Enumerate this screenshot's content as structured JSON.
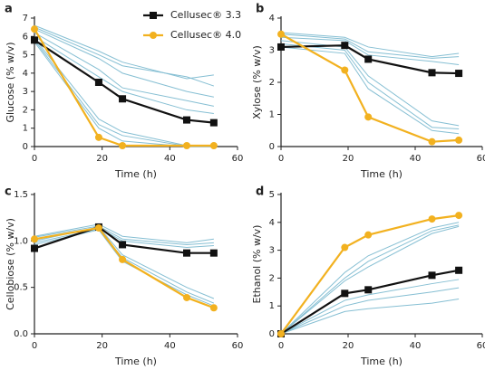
{
  "chart_data": [
    {
      "type": "line",
      "label": "a",
      "xlabel": "Time (h)",
      "ylabel": "Glucose (% w/v)",
      "x": [
        0,
        19,
        26,
        45,
        53
      ],
      "xlim": [
        0,
        60
      ],
      "xticks": [
        0,
        20,
        40,
        60
      ],
      "ylim": [
        0,
        7
      ],
      "yticks": [
        0,
        1,
        2,
        3,
        4,
        5,
        6,
        7
      ],
      "series": [
        {
          "color": "#86bfd3",
          "values": [
            6.6,
            5.2,
            4.6,
            3.7,
            3.9
          ]
        },
        {
          "color": "#86bfd3",
          "values": [
            6.5,
            5.0,
            4.4,
            3.8,
            3.3
          ]
        },
        {
          "color": "#86bfd3",
          "values": [
            6.4,
            4.8,
            4.0,
            3.0,
            2.7
          ]
        },
        {
          "color": "#86bfd3",
          "values": [
            6.2,
            4.2,
            3.2,
            2.5,
            2.2
          ]
        },
        {
          "color": "#86bfd3",
          "values": [
            6.0,
            3.8,
            3.0,
            2.0,
            1.8
          ]
        },
        {
          "color": "#86bfd3",
          "values": [
            5.9,
            1.5,
            0.8,
            0.05,
            0.05
          ]
        },
        {
          "color": "#86bfd3",
          "values": [
            5.8,
            1.2,
            0.6,
            0.02,
            0.02
          ]
        },
        {
          "color": "#86bfd3",
          "values": [
            5.7,
            1.0,
            0.3,
            0,
            0
          ]
        },
        {
          "name": "Cellusec® 3.3",
          "color": "#111111",
          "marker": "square",
          "values": [
            5.8,
            3.5,
            2.6,
            1.45,
            1.3
          ]
        },
        {
          "name": "Cellusec® 4.0",
          "color": "#f2b11f",
          "marker": "circle",
          "values": [
            6.4,
            0.5,
            0.05,
            0.05,
            0.05
          ]
        }
      ]
    },
    {
      "type": "line",
      "label": "b",
      "xlabel": "Time (h)",
      "ylabel": "Xylose (% w/v)",
      "x": [
        0,
        19,
        26,
        45,
        53
      ],
      "xlim": [
        0,
        60
      ],
      "xticks": [
        0,
        20,
        40,
        60
      ],
      "ylim": [
        0,
        4
      ],
      "yticks": [
        0,
        1,
        2,
        3,
        4
      ],
      "series": [
        {
          "color": "#86bfd3",
          "values": [
            3.55,
            3.4,
            3.1,
            2.8,
            2.9
          ]
        },
        {
          "color": "#86bfd3",
          "values": [
            3.5,
            3.35,
            2.95,
            2.75,
            2.8
          ]
        },
        {
          "color": "#86bfd3",
          "values": [
            3.4,
            3.3,
            2.85,
            2.65,
            2.55
          ]
        },
        {
          "color": "#86bfd3",
          "values": [
            3.3,
            3.1,
            2.2,
            0.8,
            0.65
          ]
        },
        {
          "color": "#86bfd3",
          "values": [
            3.2,
            3.0,
            2.0,
            0.6,
            0.55
          ]
        },
        {
          "color": "#86bfd3",
          "values": [
            3.1,
            2.9,
            1.8,
            0.5,
            0.4
          ]
        },
        {
          "color": "#111111",
          "marker": "square",
          "values": [
            3.1,
            3.15,
            2.72,
            2.3,
            2.28
          ]
        },
        {
          "color": "#f2b11f",
          "marker": "circle",
          "values": [
            3.5,
            2.38,
            0.92,
            0.15,
            0.2
          ]
        }
      ]
    },
    {
      "type": "line",
      "label": "c",
      "xlabel": "Time (h)",
      "ylabel": "Cellobiose (% w/v)",
      "x": [
        0,
        19,
        26,
        45,
        53
      ],
      "xlim": [
        0,
        60
      ],
      "xticks": [
        0,
        20,
        40,
        60
      ],
      "ylim": [
        0,
        1.5
      ],
      "yticks": [
        {
          "value": 0,
          "label": "0.0"
        },
        0.5,
        {
          "value": 1,
          "label": "1.0"
        },
        1.5
      ],
      "series": [
        {
          "color": "#86bfd3",
          "values": [
            1.05,
            1.18,
            1.05,
            0.98,
            1.02
          ]
        },
        {
          "color": "#86bfd3",
          "values": [
            1.04,
            1.16,
            1.02,
            0.96,
            0.98
          ]
        },
        {
          "color": "#86bfd3",
          "values": [
            1.02,
            1.14,
            1.0,
            0.93,
            0.95
          ]
        },
        {
          "color": "#86bfd3",
          "values": [
            1.0,
            1.15,
            0.85,
            0.5,
            0.38
          ]
        },
        {
          "color": "#86bfd3",
          "values": [
            0.98,
            1.13,
            0.82,
            0.45,
            0.33
          ]
        },
        {
          "color": "#86bfd3",
          "values": [
            0.96,
            1.12,
            0.78,
            0.42,
            0.3
          ]
        },
        {
          "color": "#111111",
          "marker": "square",
          "values": [
            0.92,
            1.15,
            0.96,
            0.87,
            0.87
          ]
        },
        {
          "color": "#f2b11f",
          "marker": "circle",
          "values": [
            1.02,
            1.14,
            0.8,
            0.39,
            0.28
          ]
        }
      ]
    },
    {
      "type": "line",
      "label": "d",
      "xlabel": "Time (h)",
      "ylabel": "Ethanol (% w/v)",
      "x": [
        0,
        19,
        26,
        45,
        53
      ],
      "xlim": [
        0,
        60
      ],
      "xticks": [
        0,
        20,
        40,
        60
      ],
      "ylim": [
        0,
        5
      ],
      "yticks": [
        0,
        1,
        2,
        3,
        4,
        5
      ],
      "series": [
        {
          "color": "#86bfd3",
          "values": [
            0,
            2.2,
            2.8,
            3.8,
            4.0
          ]
        },
        {
          "color": "#86bfd3",
          "values": [
            0,
            2.0,
            2.6,
            3.7,
            3.9
          ]
        },
        {
          "color": "#86bfd3",
          "values": [
            0,
            1.9,
            2.4,
            3.6,
            3.85
          ]
        },
        {
          "color": "#86bfd3",
          "values": [
            0,
            1.2,
            1.4,
            1.8,
            1.95
          ]
        },
        {
          "color": "#86bfd3",
          "values": [
            0,
            1.0,
            1.2,
            1.5,
            1.65
          ]
        },
        {
          "color": "#86bfd3",
          "values": [
            0,
            0.8,
            0.9,
            1.1,
            1.25
          ]
        },
        {
          "color": "#111111",
          "marker": "square",
          "values": [
            0,
            1.45,
            1.58,
            2.1,
            2.28
          ]
        },
        {
          "color": "#f2b11f",
          "marker": "circle",
          "values": [
            0,
            3.1,
            3.55,
            4.12,
            4.25
          ]
        }
      ]
    }
  ]
}
